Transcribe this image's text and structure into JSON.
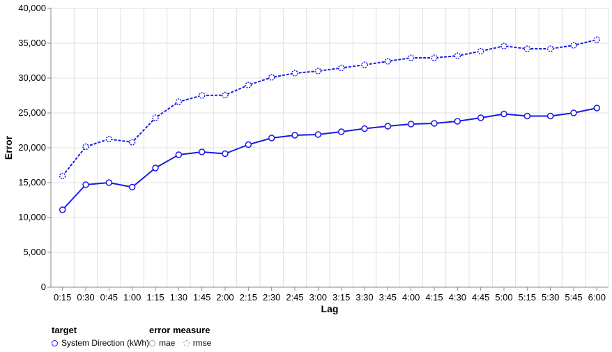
{
  "chart_data": {
    "type": "line",
    "xlabel": "Lag",
    "ylabel": "Error",
    "categories": [
      "0:15",
      "0:30",
      "0:45",
      "1:00",
      "1:15",
      "1:30",
      "1:45",
      "2:00",
      "2:15",
      "2:30",
      "2:45",
      "3:00",
      "3:15",
      "3:30",
      "3:45",
      "4:00",
      "4:15",
      "4:30",
      "4:45",
      "5:00",
      "5:15",
      "5:30",
      "5:45",
      "6:00"
    ],
    "ylim": [
      0,
      40000
    ],
    "yticks": [
      0,
      5000,
      10000,
      15000,
      20000,
      25000,
      30000,
      35000,
      40000
    ],
    "ytick_labels": [
      "0",
      "5,000",
      "10,000",
      "15,000",
      "20,000",
      "25,000",
      "30,000",
      "35,000",
      "40,000"
    ],
    "grid": true,
    "series": [
      {
        "name": "mae",
        "target": "System Direction (kWh)",
        "color": "#1a1ae6",
        "dash": "solid",
        "values": [
          11100,
          14700,
          15000,
          14350,
          17100,
          19000,
          19400,
          19150,
          20450,
          21400,
          21800,
          21900,
          22300,
          22750,
          23100,
          23400,
          23500,
          23800,
          24300,
          24850,
          24550,
          24550,
          25000,
          25700
        ]
      },
      {
        "name": "rmse",
        "target": "System Direction (kWh)",
        "color": "#1a1ae6",
        "dash": "dashed",
        "values": [
          15950,
          20150,
          21250,
          20800,
          24300,
          26600,
          27500,
          27550,
          29000,
          30100,
          30700,
          31000,
          31450,
          31900,
          32400,
          32900,
          32900,
          33200,
          33850,
          34600,
          34200,
          34200,
          34700,
          35500
        ]
      }
    ],
    "legend": {
      "placement": "bottom-left",
      "target_title": "target",
      "target_items": [
        "System Direction (kWh)"
      ],
      "measure_title": "error measure",
      "measure_items": [
        "mae",
        "rmse"
      ]
    }
  },
  "colors": {
    "series": "#1a1ae6",
    "grid": "#e0e0e0",
    "axis": "#888888",
    "legend_gray": "#a3a3a3"
  }
}
